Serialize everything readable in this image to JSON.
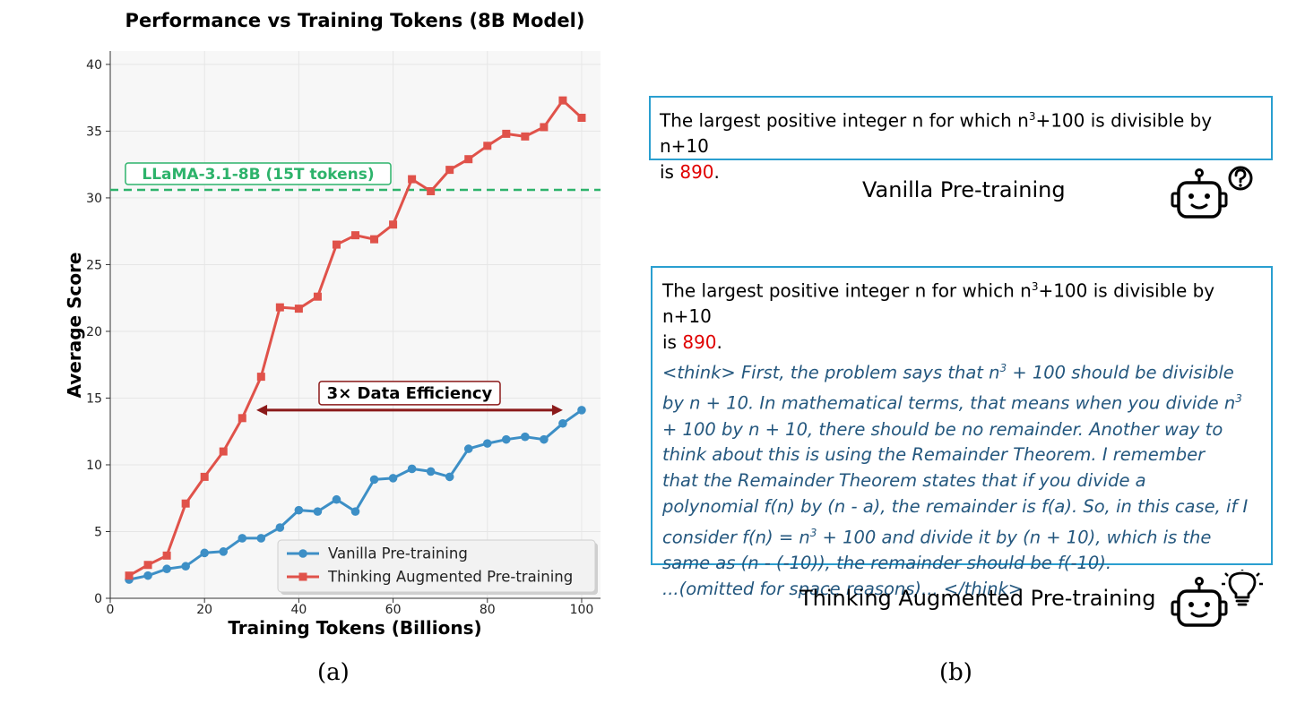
{
  "chart_data": {
    "type": "line",
    "title": "Performance vs Training Tokens (8B Model)",
    "xlabel": "Training Tokens (Billions)",
    "ylabel": "Average Score",
    "xlim": [
      0,
      104
    ],
    "ylim": [
      0,
      41
    ],
    "xticks": [
      0,
      20,
      40,
      60,
      80,
      100
    ],
    "yticks": [
      0,
      5,
      10,
      15,
      20,
      25,
      30,
      35,
      40
    ],
    "grid": true,
    "legend_position": "bottom-right",
    "series": [
      {
        "name": "Vanilla Pre-training",
        "color": "#3d8fc6",
        "marker": "circle",
        "x": [
          4,
          8,
          12,
          16,
          20,
          24,
          28,
          32,
          36,
          40,
          44,
          48,
          52,
          56,
          60,
          64,
          68,
          72,
          76,
          80,
          84,
          88,
          92,
          96,
          100
        ],
        "values": [
          1.4,
          1.7,
          2.2,
          2.4,
          3.4,
          3.5,
          4.5,
          4.5,
          5.3,
          6.6,
          6.5,
          7.4,
          6.5,
          8.9,
          9.0,
          9.7,
          9.5,
          9.1,
          11.2,
          11.6,
          11.9,
          12.1,
          11.9,
          13.1,
          14.1
        ]
      },
      {
        "name": "Thinking Augmented Pre-training",
        "color": "#e0524a",
        "marker": "square",
        "x": [
          4,
          8,
          12,
          16,
          20,
          24,
          28,
          32,
          36,
          40,
          44,
          48,
          52,
          56,
          60,
          64,
          68,
          72,
          76,
          80,
          84,
          88,
          92,
          96,
          100
        ],
        "values": [
          1.7,
          2.5,
          3.2,
          7.1,
          9.1,
          11.0,
          13.5,
          16.6,
          21.8,
          21.7,
          22.6,
          26.5,
          27.2,
          26.9,
          28.0,
          31.4,
          30.5,
          32.1,
          32.9,
          33.9,
          34.8,
          34.6,
          35.3,
          37.3,
          36.0
        ]
      }
    ],
    "reference_line": {
      "label": "LLaMA-3.1-8B (15T tokens)",
      "y": 30.6,
      "color": "#2db36b"
    },
    "annotation": {
      "label": "3× Data Efficiency",
      "x_start": 31,
      "x_end": 96,
      "y": 14.1,
      "color": "#8b1a1a"
    }
  },
  "captions": {
    "a": "(a)",
    "b": "(b)"
  },
  "panel_b": {
    "vanilla": {
      "line1": "The largest positive integer n for which n",
      "sup": "3",
      "line1_rest": "+100 is divisible by n+10",
      "is": "is ",
      "answer": "890",
      "period": ".",
      "label": "Vanilla Pre-training",
      "robot_icon": "robot-question-icon"
    },
    "thinking": {
      "line1": "The largest positive integer n for which n",
      "sup": "3",
      "line1_rest": "+100 is divisible by n+10",
      "is": "is ",
      "answer": "890",
      "period": ".",
      "think_lines": [
        {
          "pre": "<think> First, the problem says that n",
          "sup": "3",
          "post": " + 100 should be divisible"
        },
        {
          "pre": "by n + 10. In mathematical terms, that means when you divide n",
          "sup": "3",
          "post": ""
        },
        {
          "pre": "+ 100 by n + 10, there should be no remainder. Another way to",
          "sup": "",
          "post": ""
        },
        {
          "pre": "think about this is using the Remainder Theorem. I remember",
          "sup": "",
          "post": ""
        },
        {
          "pre": "that the Remainder Theorem states that if you divide a",
          "sup": "",
          "post": ""
        },
        {
          "pre": "polynomial f(n) by (n - a), the remainder is f(a). So, in this case, if I",
          "sup": "",
          "post": ""
        },
        {
          "pre": "consider f(n) = n",
          "sup": "3",
          "post": " + 100 and divide it by (n + 10), which is the"
        },
        {
          "pre": "same as (n - (-10)), the remainder should be f(-10).",
          "sup": "",
          "post": ""
        },
        {
          "pre": "...(omitted for space reasons)... </think>",
          "sup": "",
          "post": ""
        }
      ],
      "label": "Thinking Augmented Pre-training",
      "robot_icon": "robot-lightbulb-icon"
    }
  }
}
